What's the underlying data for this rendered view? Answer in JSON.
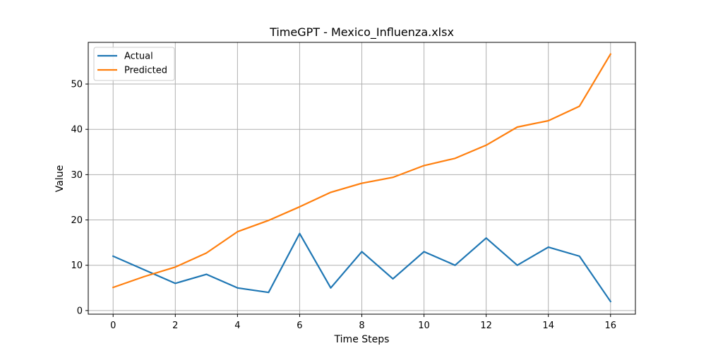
{
  "chart_data": {
    "type": "line",
    "title": "TimeGPT - Mexico_Influenza.xlsx",
    "xlabel": "Time Steps",
    "ylabel": "Value",
    "x": [
      0,
      1,
      2,
      3,
      4,
      5,
      6,
      7,
      8,
      9,
      10,
      11,
      12,
      13,
      14,
      15,
      16
    ],
    "xlim": [
      -0.8,
      16.8
    ],
    "ylim": [
      -0.8,
      59.2
    ],
    "x_ticks": [
      0,
      2,
      4,
      6,
      8,
      10,
      12,
      14,
      16
    ],
    "y_ticks": [
      0,
      10,
      20,
      30,
      40,
      50
    ],
    "grid": true,
    "legend_position": "top-left",
    "series": [
      {
        "name": "Actual",
        "color": "#1f77b4",
        "values": [
          12,
          9,
          6,
          8,
          5,
          4,
          17,
          5,
          13,
          7,
          13,
          10,
          16,
          10,
          14,
          12,
          2
        ]
      },
      {
        "name": "Predicted",
        "color": "#ff7f0e",
        "values": [
          5.1,
          7.5,
          9.6,
          12.7,
          17.4,
          19.9,
          22.9,
          26.1,
          28.1,
          29.4,
          32.0,
          33.6,
          36.5,
          40.5,
          41.9,
          45.1,
          56.6
        ]
      }
    ]
  }
}
